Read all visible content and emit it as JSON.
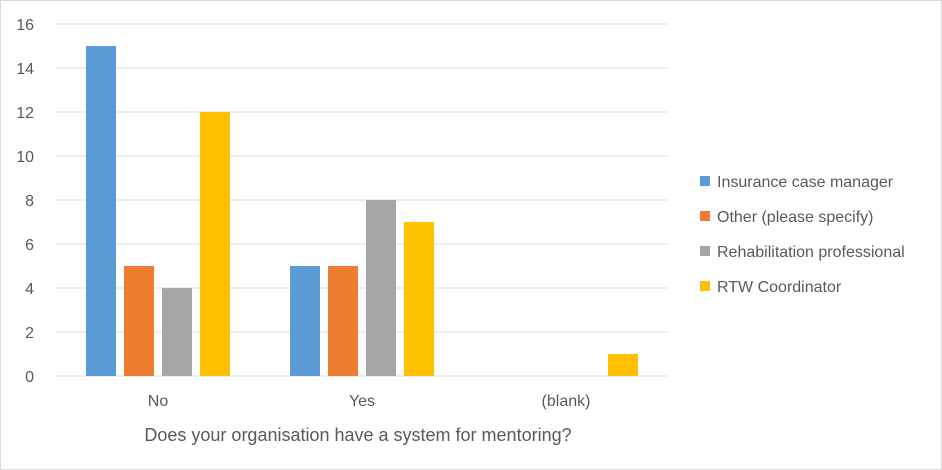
{
  "chart_data": {
    "type": "bar",
    "title": "",
    "xlabel": "Does your organisation have a system for mentoring?",
    "ylabel": "",
    "categories": [
      "No",
      "Yes",
      "(blank)"
    ],
    "ylim": [
      0,
      16
    ],
    "yticks": [
      0,
      2,
      4,
      6,
      8,
      10,
      12,
      14,
      16
    ],
    "grid": true,
    "legend_position": "right",
    "series": [
      {
        "name": "Insurance case manager",
        "color": "#5B9BD5",
        "values": [
          15,
          5,
          null
        ]
      },
      {
        "name": "Other (please specify)",
        "color": "#ED7D31",
        "values": [
          5,
          5,
          null
        ]
      },
      {
        "name": "Rehabilitation professional",
        "color": "#A5A5A5",
        "values": [
          4,
          8,
          null
        ]
      },
      {
        "name": "RTW Coordinator",
        "color": "#FFC000",
        "values": [
          12,
          7,
          1
        ]
      }
    ]
  }
}
